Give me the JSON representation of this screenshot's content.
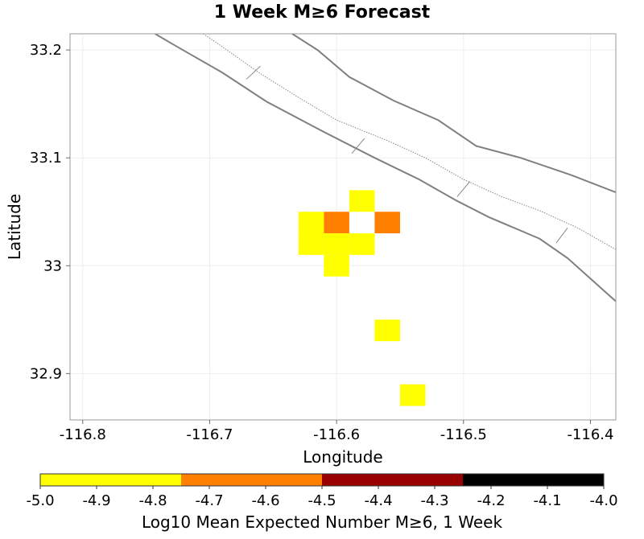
{
  "chart_data": {
    "type": "heatmap",
    "title": "1 Week M≥6 Forecast",
    "xlabel": "Longitude",
    "ylabel": "Latitude",
    "xlim": [
      -116.81,
      -116.38
    ],
    "ylim": [
      32.857,
      33.215
    ],
    "x_ticks": [
      -116.8,
      -116.7,
      -116.6,
      -116.5,
      -116.4
    ],
    "x_tick_labels": [
      "-116.8",
      "-116.7",
      "-116.6",
      "-116.5",
      "-116.4"
    ],
    "y_ticks": [
      32.9,
      33.0,
      33.1,
      33.2
    ],
    "y_tick_labels": [
      "32.9",
      "33",
      "33.1",
      "33.2"
    ],
    "cell_size": 0.02,
    "cells": [
      {
        "lon": -116.58,
        "lat": 33.06,
        "value": -4.9
      },
      {
        "lon": -116.62,
        "lat": 33.04,
        "value": -4.9
      },
      {
        "lon": -116.6,
        "lat": 33.04,
        "value": -4.6
      },
      {
        "lon": -116.56,
        "lat": 33.04,
        "value": -4.6
      },
      {
        "lon": -116.62,
        "lat": 33.02,
        "value": -4.9
      },
      {
        "lon": -116.6,
        "lat": 33.02,
        "value": -4.9
      },
      {
        "lon": -116.58,
        "lat": 33.02,
        "value": -4.9
      },
      {
        "lon": -116.6,
        "lat": 33.0,
        "value": -4.9
      },
      {
        "lon": -116.56,
        "lat": 32.94,
        "value": -4.9
      },
      {
        "lon": -116.54,
        "lat": 32.88,
        "value": -4.9
      }
    ],
    "colorbar": {
      "label": "Log10 Mean Expected Number M≥6, 1 Week",
      "min": -5.0,
      "max": -4.0,
      "segments": [
        {
          "from": -5.0,
          "to": -4.75,
          "color": "#ffff00"
        },
        {
          "from": -4.75,
          "to": -4.5,
          "color": "#ff7f00"
        },
        {
          "from": -4.5,
          "to": -4.25,
          "color": "#990000"
        },
        {
          "from": -4.25,
          "to": -4.0,
          "color": "#000000"
        }
      ],
      "tick_values": [
        -5.0,
        -4.9,
        -4.8,
        -4.7,
        -4.6,
        -4.5,
        -4.4,
        -4.3,
        -4.2,
        -4.1,
        -4.0
      ],
      "tick_labels": [
        "-5.0",
        "-4.9",
        "-4.8",
        "-4.7",
        "-4.6",
        "-4.5",
        "-4.4",
        "-4.3",
        "-4.2",
        "-4.1",
        "-4.0"
      ]
    },
    "fault_traces": [
      {
        "style": "solid",
        "points": [
          [
            -116.743,
            33.215
          ],
          [
            -116.73,
            33.206
          ],
          [
            -116.69,
            33.179
          ],
          [
            -116.655,
            33.152
          ],
          [
            -116.61,
            33.124
          ],
          [
            -116.57,
            33.1
          ],
          [
            -116.535,
            33.08
          ],
          [
            -116.505,
            33.06
          ],
          [
            -116.48,
            33.045
          ],
          [
            -116.44,
            33.025
          ],
          [
            -116.418,
            33.007
          ],
          [
            -116.38,
            32.967
          ]
        ]
      },
      {
        "style": "solid",
        "points": [
          [
            -116.635,
            33.215
          ],
          [
            -116.615,
            33.2
          ],
          [
            -116.59,
            33.175
          ],
          [
            -116.555,
            33.153
          ],
          [
            -116.52,
            33.135
          ],
          [
            -116.49,
            33.111
          ],
          [
            -116.455,
            33.1
          ],
          [
            -116.415,
            33.084
          ],
          [
            -116.38,
            33.068
          ]
        ]
      },
      {
        "style": "dotted",
        "points": [
          [
            -116.705,
            33.215
          ],
          [
            -116.69,
            33.203
          ],
          [
            -116.66,
            33.178
          ],
          [
            -116.63,
            33.156
          ],
          [
            -116.6,
            33.135
          ],
          [
            -116.56,
            33.116
          ],
          [
            -116.53,
            33.1
          ],
          [
            -116.5,
            33.08
          ],
          [
            -116.47,
            33.064
          ],
          [
            -116.44,
            33.051
          ],
          [
            -116.41,
            33.035
          ],
          [
            -116.38,
            33.015
          ]
        ]
      }
    ],
    "fault_ticks": [
      [
        [
          -116.671,
          33.173
        ],
        [
          -116.66,
          33.185
        ]
      ],
      [
        [
          -116.588,
          33.104
        ],
        [
          -116.578,
          33.118
        ]
      ],
      [
        [
          -116.505,
          33.064
        ],
        [
          -116.495,
          33.078
        ]
      ],
      [
        [
          -116.427,
          33.021
        ],
        [
          -116.418,
          33.035
        ]
      ]
    ]
  }
}
